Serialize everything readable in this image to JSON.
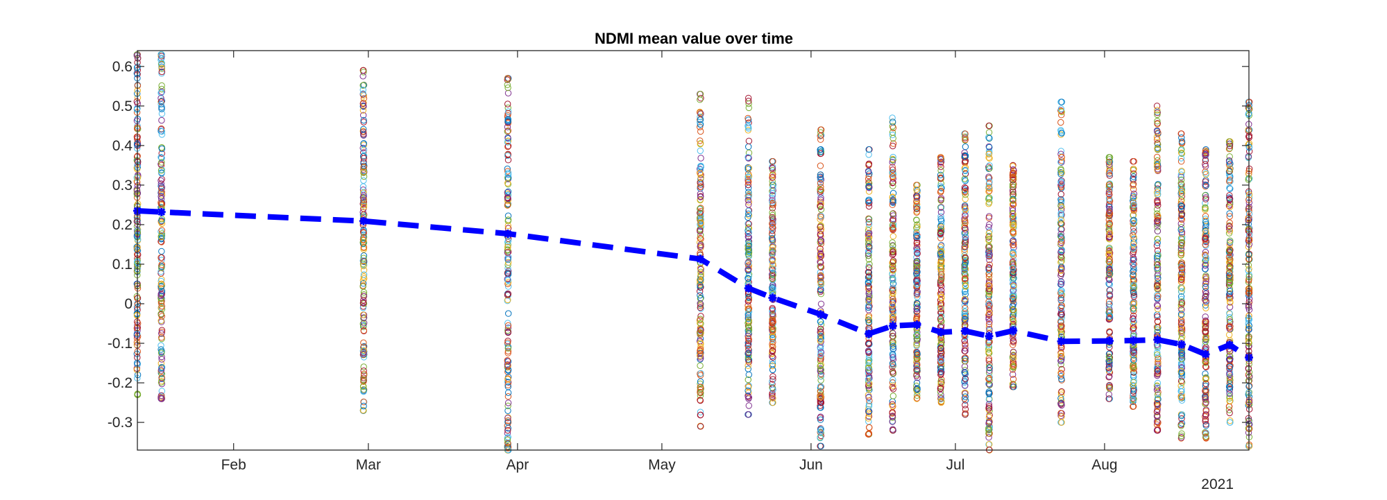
{
  "chart_data": {
    "type": "scatter",
    "title": "NDMI mean value over time",
    "xlabel": "",
    "ylabel": "",
    "year_label": "2021",
    "xlim": [
      "2021-01-12",
      "2021-08-31"
    ],
    "ylim": [
      -0.37,
      0.64
    ],
    "x_ticks": [
      {
        "date": "2021-02-01",
        "label": "Feb"
      },
      {
        "date": "2021-03-01",
        "label": "Mar"
      },
      {
        "date": "2021-04-01",
        "label": "Apr"
      },
      {
        "date": "2021-05-01",
        "label": "May"
      },
      {
        "date": "2021-06-01",
        "label": "Jun"
      },
      {
        "date": "2021-07-01",
        "label": "Jul"
      },
      {
        "date": "2021-08-01",
        "label": "Aug"
      }
    ],
    "y_ticks": [
      -0.3,
      -0.2,
      -0.1,
      0,
      0.1,
      0.2,
      0.3,
      0.4,
      0.5,
      0.6
    ],
    "y_tick_labels": [
      "-0.3",
      "-0.2",
      "-0.1",
      "0",
      "0.1",
      "0.2",
      "0.3",
      "0.4",
      "0.5",
      "0.6"
    ],
    "grid": false,
    "scatter_colors": [
      "#0072BD",
      "#D95319",
      "#EDB120",
      "#7E2F8E",
      "#77AC30",
      "#4DBEEE",
      "#A2142F"
    ],
    "mean_series": {
      "color": "#0000FF",
      "line_style": "dashed",
      "marker": "*",
      "points": [
        {
          "date": "2021-01-12",
          "mean": 0.235
        },
        {
          "date": "2021-01-17",
          "mean": 0.232
        },
        {
          "date": "2021-02-28",
          "mean": 0.209
        },
        {
          "date": "2021-03-30",
          "mean": 0.177
        },
        {
          "date": "2021-05-09",
          "mean": 0.113
        },
        {
          "date": "2021-05-19",
          "mean": 0.039
        },
        {
          "date": "2021-05-24",
          "mean": 0.015
        },
        {
          "date": "2021-06-03",
          "mean": -0.027
        },
        {
          "date": "2021-06-13",
          "mean": -0.076
        },
        {
          "date": "2021-06-18",
          "mean": -0.056
        },
        {
          "date": "2021-06-23",
          "mean": -0.053
        },
        {
          "date": "2021-06-28",
          "mean": -0.072
        },
        {
          "date": "2021-07-03",
          "mean": -0.069
        },
        {
          "date": "2021-07-08",
          "mean": -0.082
        },
        {
          "date": "2021-07-13",
          "mean": -0.068
        },
        {
          "date": "2021-07-23",
          "mean": -0.095
        },
        {
          "date": "2021-08-02",
          "mean": -0.094
        },
        {
          "date": "2021-08-07",
          "mean": -0.093
        },
        {
          "date": "2021-08-12",
          "mean": -0.091
        },
        {
          "date": "2021-08-17",
          "mean": -0.103
        },
        {
          "date": "2021-08-22",
          "mean": -0.128
        },
        {
          "date": "2021-08-27",
          "mean": -0.104
        },
        {
          "date": "2021-08-31",
          "mean": -0.136
        }
      ]
    },
    "scatter_columns": [
      {
        "date": "2021-01-12",
        "min": -0.23,
        "max": 0.63
      },
      {
        "date": "2021-01-17",
        "min": -0.24,
        "max": 0.63
      },
      {
        "date": "2021-02-28",
        "min": -0.27,
        "max": 0.59
      },
      {
        "date": "2021-03-30",
        "min": -0.37,
        "max": 0.57
      },
      {
        "date": "2021-05-09",
        "min": -0.31,
        "max": 0.53
      },
      {
        "date": "2021-05-19",
        "min": -0.28,
        "max": 0.52
      },
      {
        "date": "2021-05-24",
        "min": -0.25,
        "max": 0.36
      },
      {
        "date": "2021-06-03",
        "min": -0.36,
        "max": 0.44
      },
      {
        "date": "2021-06-13",
        "min": -0.33,
        "max": 0.39
      },
      {
        "date": "2021-06-18",
        "min": -0.32,
        "max": 0.47
      },
      {
        "date": "2021-06-23",
        "min": -0.24,
        "max": 0.3
      },
      {
        "date": "2021-06-28",
        "min": -0.25,
        "max": 0.37
      },
      {
        "date": "2021-07-03",
        "min": -0.28,
        "max": 0.43
      },
      {
        "date": "2021-07-08",
        "min": -0.37,
        "max": 0.45
      },
      {
        "date": "2021-07-13",
        "min": -0.21,
        "max": 0.35
      },
      {
        "date": "2021-07-23",
        "min": -0.3,
        "max": 0.51
      },
      {
        "date": "2021-08-02",
        "min": -0.24,
        "max": 0.37
      },
      {
        "date": "2021-08-07",
        "min": -0.26,
        "max": 0.36
      },
      {
        "date": "2021-08-12",
        "min": -0.32,
        "max": 0.5
      },
      {
        "date": "2021-08-17",
        "min": -0.34,
        "max": 0.43
      },
      {
        "date": "2021-08-22",
        "min": -0.34,
        "max": 0.39
      },
      {
        "date": "2021-08-27",
        "min": -0.3,
        "max": 0.41
      },
      {
        "date": "2021-08-31",
        "min": -0.36,
        "max": 0.51
      }
    ]
  }
}
